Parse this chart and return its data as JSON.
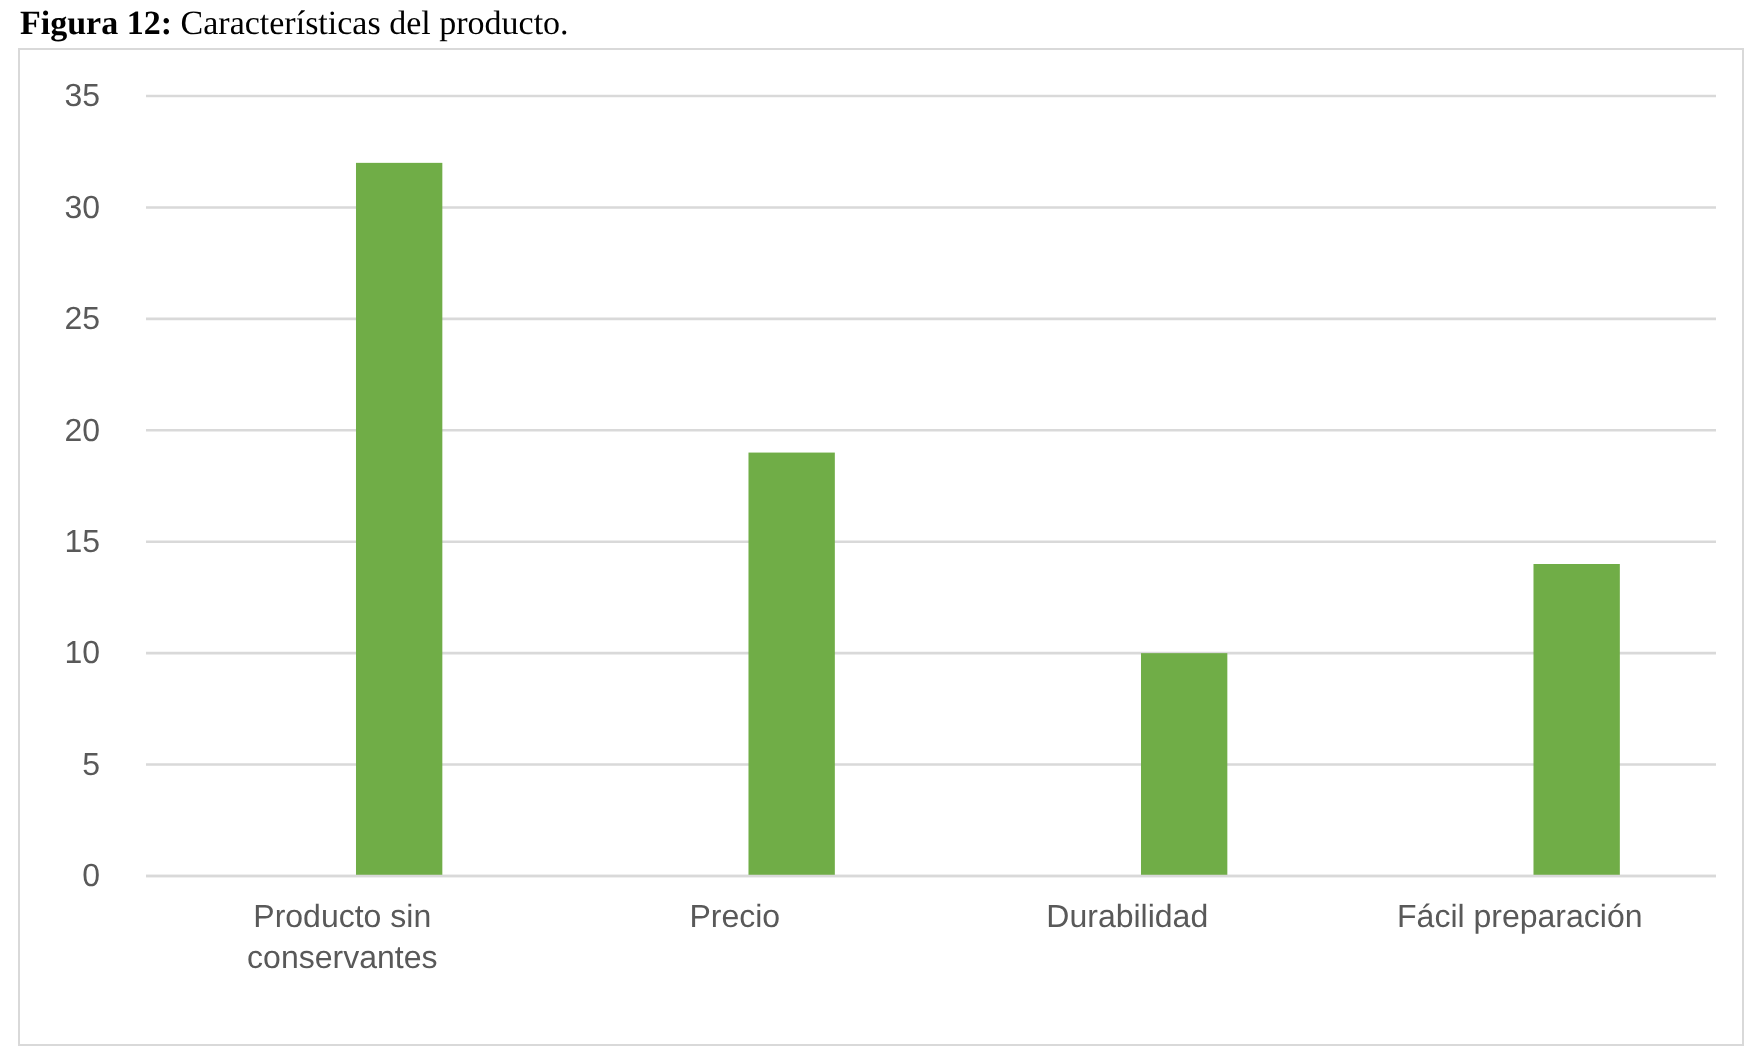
{
  "chart_data": {
    "type": "bar",
    "title": "Figura 12: Características del producto.",
    "categories": [
      "Producto sin conservantes",
      "Precio",
      "Durabilidad",
      "Fácil preparación"
    ],
    "values": [
      32,
      19,
      10,
      14
    ],
    "color": "#70ad47",
    "ylim": [
      0,
      35
    ],
    "yticks": [
      0,
      5,
      10,
      15,
      20,
      25,
      30,
      35
    ],
    "grid": "y"
  }
}
